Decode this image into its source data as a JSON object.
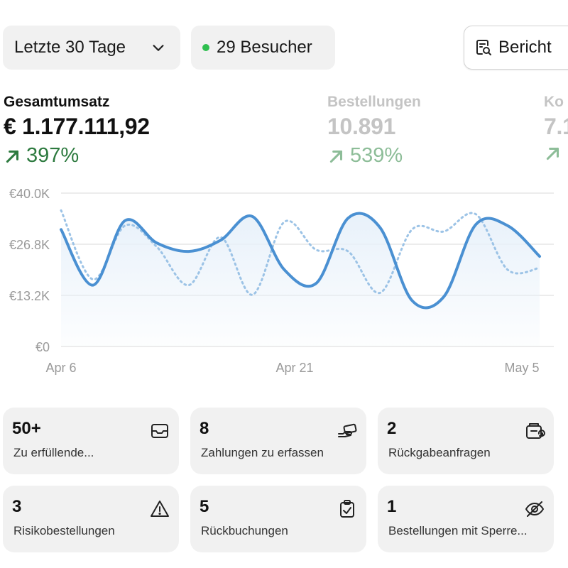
{
  "toolbar": {
    "range_label": "Letzte 30 Tage",
    "visitors_label": "29 Besucher",
    "report_label": "Bericht"
  },
  "metrics": [
    {
      "label": "Gesamtumsatz",
      "value": "€ 1.177.111,92",
      "change": "397%"
    },
    {
      "label": "Bestellungen",
      "value": "10.891",
      "change": "539%"
    },
    {
      "label": "Ko",
      "value": "7.1",
      "change": ""
    }
  ],
  "chart_data": {
    "type": "line",
    "y_ticks": [
      "€40.0K",
      "€26.8K",
      "€13.2K",
      "€0"
    ],
    "x_ticks": [
      "Apr 6",
      "Apr 21",
      "May 5"
    ],
    "ylim": [
      0,
      40000
    ],
    "grid": true,
    "series": [
      {
        "style": "solid",
        "color": "#4a90d2",
        "values": [
          30500,
          16000,
          32800,
          27000,
          24800,
          27700,
          33900,
          20000,
          16500,
          33500,
          31000,
          12000,
          13000,
          31800,
          31500,
          23500
        ]
      },
      {
        "style": "dotted",
        "color": "#9cc3e6",
        "values": [
          35500,
          17500,
          31500,
          26000,
          16000,
          28500,
          13500,
          32500,
          25200,
          24800,
          14000,
          30500,
          30000,
          34500,
          20000,
          20500
        ]
      }
    ],
    "area_fill": "#e8f1fa"
  },
  "cards": [
    {
      "number": "50+",
      "label": "Zu erfüllende...",
      "icon": "inbox-icon"
    },
    {
      "number": "8",
      "label": "Zahlungen zu erfassen",
      "icon": "hand-card-icon"
    },
    {
      "number": "2",
      "label": "Rückgabeanfragen",
      "icon": "return-box-icon"
    },
    {
      "number": "3",
      "label": "Risikobestellungen",
      "icon": "warning-icon"
    },
    {
      "number": "5",
      "label": "Rückbuchungen",
      "icon": "clipboard-check-icon"
    },
    {
      "number": "1",
      "label": "Bestellungen mit Sperre...",
      "icon": "eye-off-icon"
    }
  ]
}
